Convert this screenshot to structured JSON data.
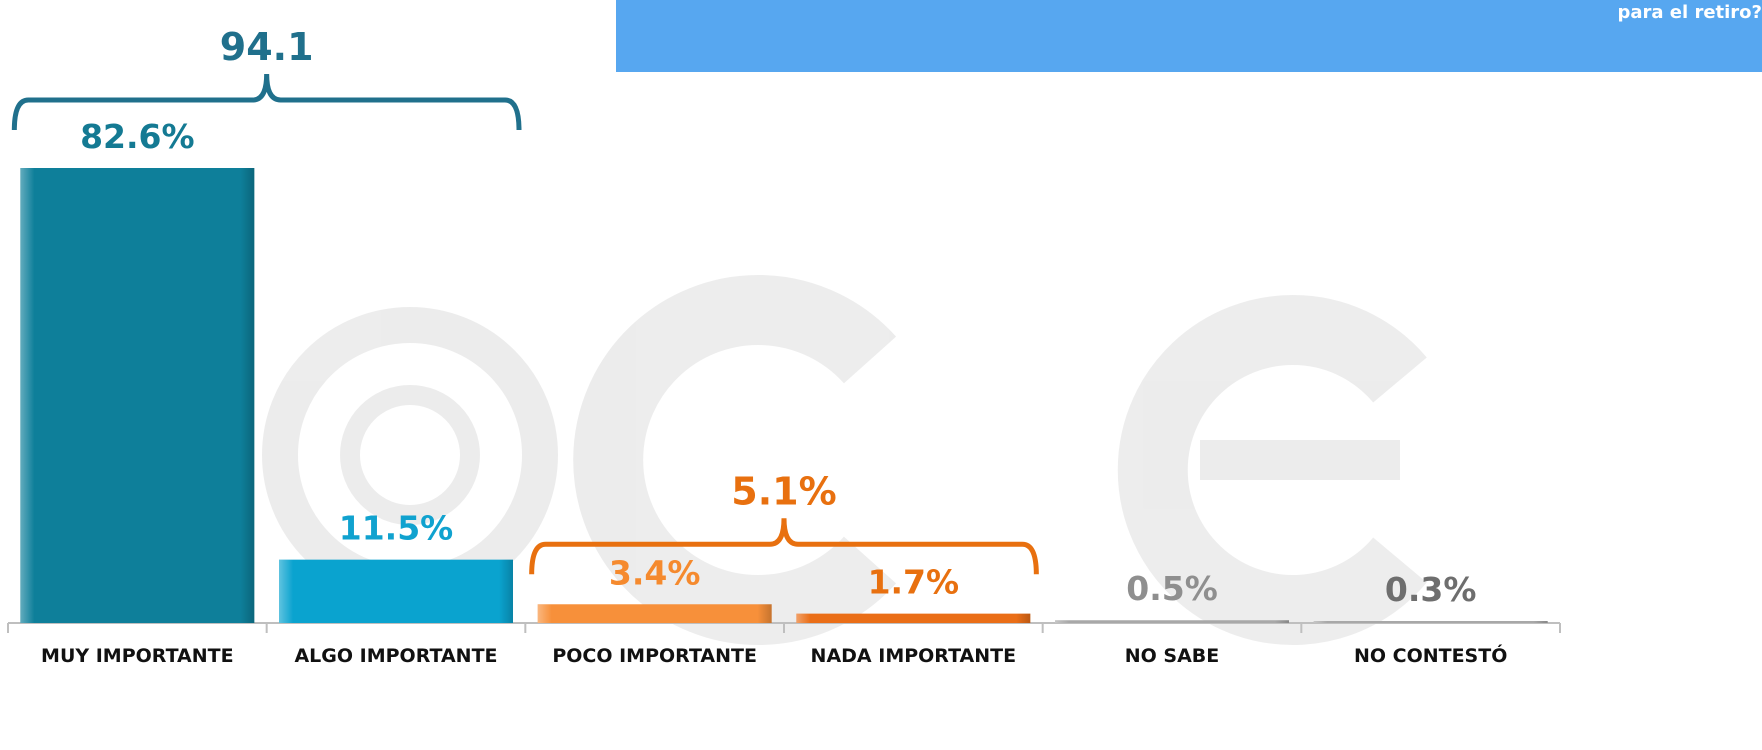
{
  "header": {
    "title": "para el retiro?"
  },
  "chart_data": {
    "type": "bar",
    "categories": [
      "MUY IMPORTANTE",
      "ALGO IMPORTANTE",
      "POCO IMPORTANTE",
      "NADA IMPORTANTE",
      "NO SABE",
      "NO CONTESTÓ"
    ],
    "values": [
      82.6,
      11.5,
      3.4,
      1.7,
      0.5,
      0.3
    ],
    "value_labels": [
      "82.6%",
      "11.5%",
      "3.4%",
      "1.7%",
      "0.5%",
      "0.3%"
    ],
    "colors": [
      "#0e7f9a",
      "#0aa3cf",
      "#f7903a",
      "#ea6e17",
      "#a8a8a8",
      "#a8a8a8"
    ],
    "label_colors": [
      "#147a93",
      "#10a2cf",
      "#f58a2e",
      "#e8700f",
      "#8f8f8f",
      "#6e6e6e"
    ],
    "ylim": [
      0,
      82.6
    ],
    "groups": [
      {
        "label": "94.1",
        "from": 0,
        "to": 1,
        "color": "#20708c"
      },
      {
        "label": "5.1%",
        "from": 2,
        "to": 3,
        "color": "#e8700f"
      }
    ]
  }
}
